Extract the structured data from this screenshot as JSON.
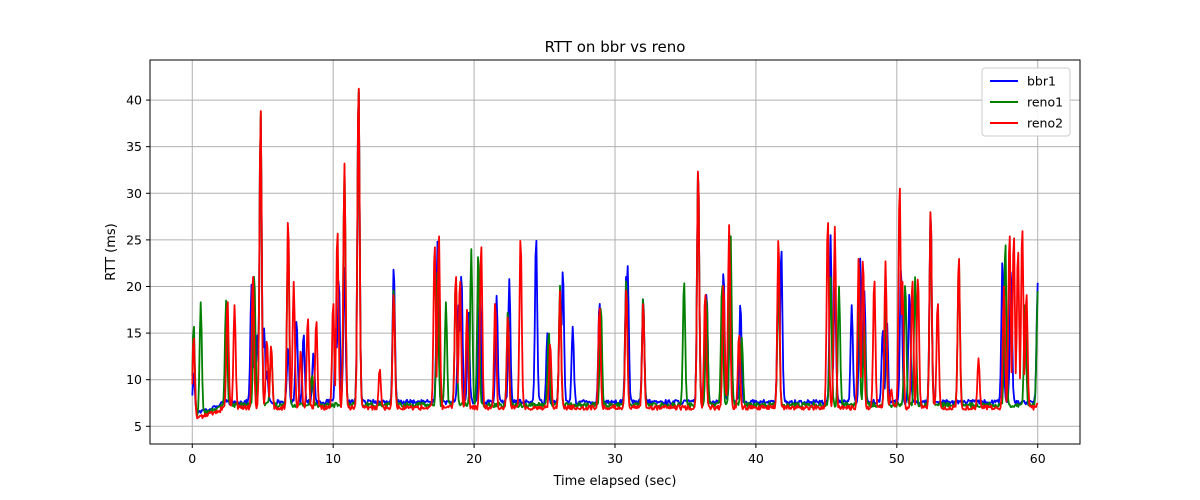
{
  "chart_data": {
    "type": "line",
    "title": "RTT on bbr vs reno",
    "xlabel": "Time elapsed (sec)",
    "ylabel": "RTT (ms)",
    "xlim": [
      -3,
      63
    ],
    "ylim": [
      3.1,
      44.3
    ],
    "xticks": [
      0,
      10,
      20,
      30,
      40,
      50,
      60
    ],
    "yticks": [
      5,
      10,
      15,
      20,
      25,
      30,
      35,
      40
    ],
    "grid": true,
    "legend_position": "top-right",
    "baselines": [
      7.6,
      7.3,
      7.0
    ],
    "series": [
      {
        "name": "bbr1",
        "color": "#0000ff",
        "x": [
          0.1,
          0.4,
          1.0,
          1.5,
          2.0,
          2.5,
          4.2,
          4.4,
          4.6,
          4.85,
          5.1,
          5.3,
          6.8,
          7.4,
          7.9,
          8.6,
          10.2,
          10.4,
          10.8,
          11.8,
          14.3,
          17.4,
          18.9,
          19.1,
          19.6,
          20.4,
          21.6,
          22.5,
          24.4,
          25.2,
          26.1,
          26.3,
          27.0,
          28.9,
          30.8,
          30.9,
          32.0,
          35.9,
          36.5,
          37.7,
          38.2,
          38.9,
          41.6,
          41.8,
          45.3,
          45.6,
          46.8,
          47.4,
          47.7,
          49.0,
          49.3,
          50.3,
          50.9,
          52.4,
          57.5,
          58.1,
          60.0
        ],
        "y": [
          10.8,
          5.4,
          6.1,
          6.8,
          6.9,
          7.0,
          20.2,
          12,
          15,
          38.5,
          15.5,
          11,
          13.5,
          16.5,
          15,
          13,
          15.5,
          21,
          22,
          42,
          22.3,
          24.8,
          18,
          21.5,
          17.5,
          20.5,
          19.0,
          20.8,
          25.5,
          15.0,
          18.5,
          22.0,
          15.7,
          18.5,
          21.5,
          22.2,
          19.0,
          33.0,
          19.5,
          21.8,
          21.0,
          18.3,
          23.0,
          24.3,
          25.5,
          20,
          18,
          23,
          19.5,
          15.5,
          16.3,
          22.2,
          19.5,
          28.5,
          23.0,
          22.0,
          20.4
        ]
      },
      {
        "name": "reno1",
        "color": "#008000",
        "x": [
          0.1,
          0.6,
          2.4,
          4.4,
          4.85,
          5.6,
          6.8,
          8.5,
          10.8,
          11.8,
          14.3,
          17.4,
          18.0,
          18.7,
          19.8,
          20.3,
          22.4,
          25.3,
          26.1,
          29.0,
          30.8,
          32.0,
          34.9,
          35.9,
          36.5,
          37.6,
          38.2,
          39.0,
          41.6,
          45.3,
          45.9,
          47.3,
          47.7,
          49.2,
          50.6,
          51.3,
          52.4,
          54.4,
          57.7,
          59.1,
          60.0
        ],
        "y": [
          16.0,
          18.3,
          18.5,
          21.5,
          39.0,
          13.5,
          26.0,
          10.5,
          33.0,
          42.3,
          20.0,
          21.5,
          18.3,
          21.0,
          24.0,
          23.7,
          17.5,
          15.2,
          20.1,
          18.0,
          21.0,
          19.0,
          20.8,
          33.0,
          19.0,
          20.5,
          26.0,
          14.5,
          21.0,
          21.0,
          20.0,
          18.0,
          16.0,
          18.0,
          20.5,
          21.0,
          28.0,
          23.0,
          25.0,
          18.0,
          19.5
        ]
      },
      {
        "name": "reno2",
        "color": "#ff0000",
        "x": [
          0.1,
          0.4,
          2.5,
          3.0,
          4.3,
          4.85,
          5.3,
          5.6,
          6.8,
          7.2,
          7.7,
          8.2,
          8.8,
          10.0,
          10.3,
          10.8,
          11.8,
          13.3,
          14.3,
          17.2,
          17.5,
          18.7,
          19.0,
          19.5,
          20.5,
          21.5,
          22.4,
          23.3,
          25.4,
          26.1,
          28.9,
          30.8,
          32.0,
          35.9,
          36.4,
          37.7,
          38.1,
          38.8,
          41.6,
          45.1,
          45.6,
          47.3,
          47.6,
          48.4,
          49.2,
          49.6,
          50.2,
          50.4,
          51.1,
          51.5,
          52.4,
          52.9,
          54.4,
          55.8,
          57.6,
          58.0,
          58.3,
          58.6,
          58.9,
          59.2,
          60.0
        ],
        "y": [
          14.7,
          5.2,
          18.7,
          18.0,
          21.5,
          39.1,
          14.3,
          13.8,
          27.5,
          20.5,
          13.2,
          16.8,
          16.5,
          18.5,
          26.3,
          33.2,
          42.4,
          11.2,
          19.5,
          24.8,
          26.0,
          21.5,
          21.0,
          17.5,
          24.8,
          18.5,
          17.0,
          25.5,
          14.0,
          19.5,
          18.0,
          20.0,
          18.5,
          33.2,
          19.5,
          20.5,
          26.6,
          15.0,
          25.5,
          27.5,
          26.4,
          23.5,
          23.2,
          21.0,
          22.7,
          9.0,
          31.3,
          20.5,
          21.0,
          21.2,
          28.7,
          18.5,
          23.5,
          12.3,
          20.0,
          26.0,
          25.8,
          24.2,
          26.6,
          19.5,
          7.5
        ]
      }
    ]
  }
}
